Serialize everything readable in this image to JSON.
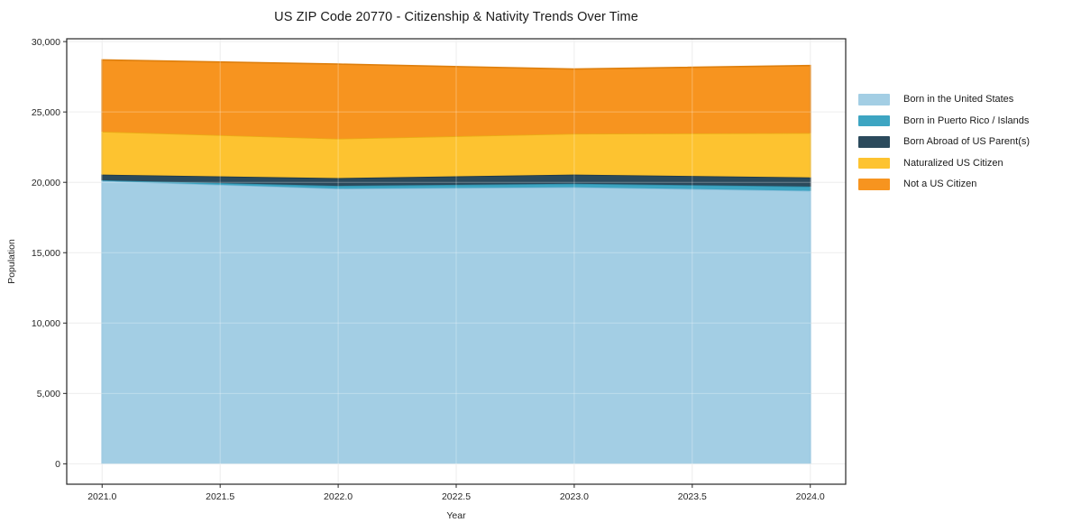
{
  "chart_data": {
    "type": "area",
    "subtype": "stacked_area",
    "title": "US ZIP Code 20770 - Citizenship & Nativity Trends Over Time",
    "xlabel": "Year",
    "ylabel": "Population",
    "x": [
      2021,
      2022,
      2023,
      2024
    ],
    "series": [
      {
        "name": "Born in the United States",
        "color": "#A3CEE4",
        "edge": "#85BCD9",
        "values": [
          20100,
          19550,
          19650,
          19400
        ]
      },
      {
        "name": "Born in Puerto Rico / Islands",
        "color": "#3DA5C2",
        "edge": "#2E8FAB",
        "values": [
          50,
          200,
          250,
          300
        ]
      },
      {
        "name": "Born Abroad of US Parent(s)",
        "color": "#2B4A5C",
        "edge": "#1E3644",
        "values": [
          400,
          550,
          650,
          650
        ]
      },
      {
        "name": "Naturalized US Citizen",
        "color": "#FDC330",
        "edge": "#E9AD14",
        "values": [
          3050,
          2800,
          2900,
          3150
        ]
      },
      {
        "name": "Not a US Citizen",
        "color": "#F7941F",
        "edge": "#DE7F0D",
        "values": [
          5100,
          5300,
          4600,
          4800
        ]
      }
    ],
    "stacked_totals": [
      28700,
      28400,
      28050,
      28300
    ],
    "xlim": [
      2020.85,
      2024.15
    ],
    "ylim": [
      -1450,
      30200
    ],
    "xticks": {
      "values": [
        2021,
        2021.5,
        2022,
        2022.5,
        2023,
        2023.5,
        2024
      ],
      "labels": [
        "2021.0",
        "2021.5",
        "2022.0",
        "2022.5",
        "2023.0",
        "2023.5",
        "2024.0"
      ]
    },
    "yticks": {
      "values": [
        0,
        5000,
        10000,
        15000,
        20000,
        25000,
        30000
      ],
      "labels": [
        "0",
        "5,000",
        "10,000",
        "15,000",
        "20,000",
        "25,000",
        "30,000"
      ]
    },
    "grid": true,
    "legend_position": "right-outside",
    "colors": {
      "background": "#ffffff",
      "frame": "#262626",
      "gridline": "#e7e7e7",
      "tick_text": "#262626",
      "title_text": "#1a1a1a"
    }
  }
}
